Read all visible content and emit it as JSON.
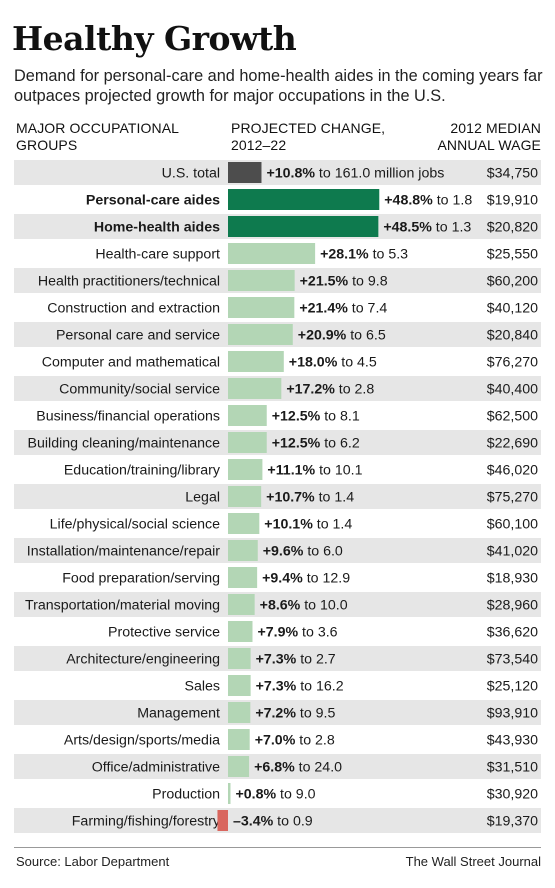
{
  "title": "Healthy Growth",
  "subtitle": "Demand for personal-care and home-health aides in the coming years far outpaces projected growth for major occupations in the U.S.",
  "headers": {
    "groups_line1": "MAJOR OCCUPATIONAL",
    "groups_line2": "GROUPS",
    "change_line1": "PROJECTED CHANGE,",
    "change_line2": "2012–22",
    "wage_line1": "2012 MEDIAN",
    "wage_line2": "ANNUAL WAGE"
  },
  "source": "Source: Labor Department",
  "credit": "The Wall Street Journal",
  "colors": {
    "total": "#4d4d4d",
    "highlight": "#0e7a4e",
    "default": "#b3d6b5",
    "negative": "#d9665e",
    "stripe": "#e6e6e6"
  },
  "chart_data": {
    "type": "bar",
    "orientation": "horizontal",
    "categories": [
      "U.S. total",
      "Personal-care aides",
      "Home-health aides",
      "Health-care support",
      "Health practitioners/technical",
      "Construction and extraction",
      "Personal care and service",
      "Computer and mathematical",
      "Community/social service",
      "Business/financial operations",
      "Building cleaning/maintenance",
      "Education/training/library",
      "Legal",
      "Life/physical/social science",
      "Installation/maintenance/repair",
      "Food preparation/serving",
      "Transportation/material moving",
      "Protective service",
      "Architecture/engineering",
      "Sales",
      "Management",
      "Arts/design/sports/media",
      "Office/administrative",
      "Production",
      "Farming/fishing/forestry"
    ],
    "values": [
      10.8,
      48.8,
      48.5,
      28.1,
      21.5,
      21.4,
      20.9,
      18.0,
      17.2,
      12.5,
      12.5,
      11.1,
      10.7,
      10.1,
      9.6,
      9.4,
      8.6,
      7.9,
      7.3,
      7.3,
      7.2,
      7.0,
      6.8,
      0.8,
      -3.4
    ],
    "value_labels": [
      "+10.8%",
      "+48.8%",
      "+48.5%",
      "+28.1%",
      "+21.5%",
      "+21.4%",
      "+20.9%",
      "+18.0%",
      "+17.2%",
      "+12.5%",
      "+12.5%",
      "+11.1%",
      "+10.7%",
      "+10.1%",
      "+9.6%",
      "+9.4%",
      "+8.6%",
      "+7.9%",
      "+7.3%",
      "+7.3%",
      "+7.2%",
      "+7.0%",
      "+6.8%",
      "+0.8%",
      "–3.4%"
    ],
    "to_labels": [
      "to 161.0 million jobs",
      "to 1.8",
      "to 1.3",
      "to 5.3",
      "to 9.8",
      "to 7.4",
      "to 6.5",
      "to 4.5",
      "to 2.8",
      "to 8.1",
      "to 6.2",
      "to 10.1",
      "to 1.4",
      "to 1.4",
      "to 6.0",
      "to 12.9",
      "to 10.0",
      "to 3.6",
      "to 2.7",
      "to 16.2",
      "to 9.5",
      "to 2.8",
      "to 24.0",
      "to 9.0",
      "to 0.9"
    ],
    "wages": [
      "$34,750",
      "$19,910",
      "$20,820",
      "$25,550",
      "$60,200",
      "$40,120",
      "$20,840",
      "$76,270",
      "$40,400",
      "$62,500",
      "$22,690",
      "$46,020",
      "$75,270",
      "$60,100",
      "$41,020",
      "$18,930",
      "$28,960",
      "$36,620",
      "$73,540",
      "$25,120",
      "$93,910",
      "$43,930",
      "$31,510",
      "$30,920",
      "$19,370"
    ],
    "row_kind": [
      "total",
      "highlight",
      "highlight",
      "default",
      "default",
      "default",
      "default",
      "default",
      "default",
      "default",
      "default",
      "default",
      "default",
      "default",
      "default",
      "default",
      "default",
      "default",
      "default",
      "default",
      "default",
      "default",
      "default",
      "default",
      "negative"
    ],
    "unit": "%"
  }
}
